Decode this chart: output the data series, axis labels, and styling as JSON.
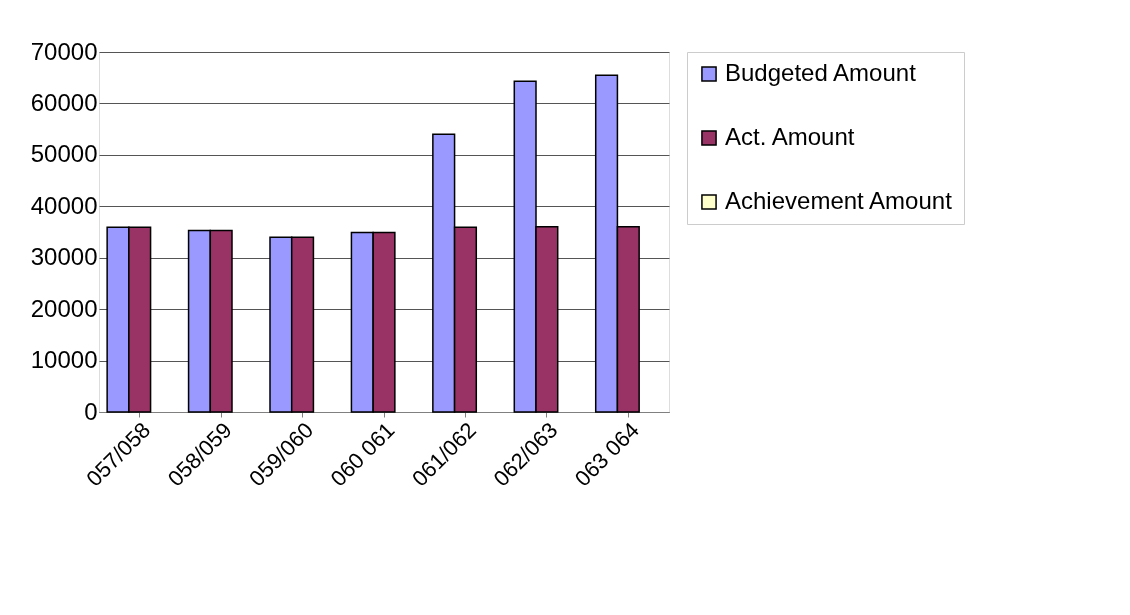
{
  "chart_data": {
    "type": "bar",
    "categories": [
      "057/058",
      "058/059",
      "059/060",
      "060 061",
      "061/062",
      "062/063",
      "063 064"
    ],
    "series": [
      {
        "name": "Budgeted Amount",
        "color": "#9999ff",
        "values": [
          35900,
          35300,
          34000,
          34900,
          54000,
          64300,
          65500
        ]
      },
      {
        "name": "Act. Amount",
        "color": "#993366",
        "values": [
          35900,
          35300,
          34000,
          34900,
          35900,
          36000,
          36000
        ]
      },
      {
        "name": "Achievement Amount",
        "color": "#ffffcc",
        "values": [
          null,
          null,
          null,
          null,
          null,
          null,
          null
        ]
      }
    ],
    "ylim": [
      0,
      70000
    ],
    "yticks": [
      0,
      10000,
      20000,
      30000,
      40000,
      50000,
      60000,
      70000
    ],
    "grid": "y",
    "legend": "right"
  }
}
